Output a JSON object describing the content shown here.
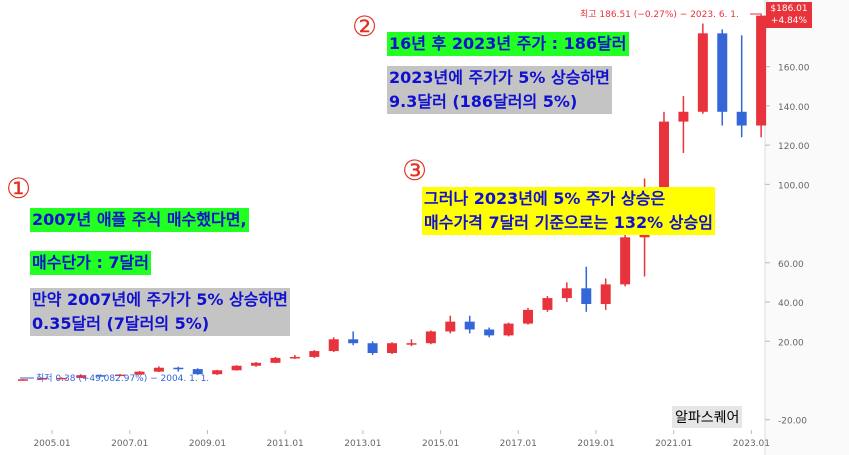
{
  "chart_data": {
    "type": "candlestick",
    "x": [
      "2004.01",
      "2004.07",
      "2005.01",
      "2005.07",
      "2006.01",
      "2006.07",
      "2007.01",
      "2007.07",
      "2008.01",
      "2008.07",
      "2009.01",
      "2009.07",
      "2010.01",
      "2010.07",
      "2011.01",
      "2011.07",
      "2012.01",
      "2012.07",
      "2013.01",
      "2013.07",
      "2014.01",
      "2014.07",
      "2015.01",
      "2015.07",
      "2016.01",
      "2016.07",
      "2017.01",
      "2017.07",
      "2018.01",
      "2018.07",
      "2019.01",
      "2019.07",
      "2020.01",
      "2020.07",
      "2021.01",
      "2021.07",
      "2022.01",
      "2022.07",
      "2023.01"
    ],
    "open": [
      0.4,
      0.6,
      1.3,
      1.3,
      2.7,
      2.4,
      3.0,
      4.5,
      6.5,
      5.8,
      3.2,
      5.2,
      7.5,
      9.0,
      11.5,
      12,
      15,
      21,
      19,
      14,
      19,
      19,
      25,
      30,
      26,
      23,
      29,
      36,
      42,
      47,
      39,
      49,
      73,
      91,
      132,
      137,
      177,
      137,
      130
    ],
    "high": [
      0.7,
      1.4,
      1.6,
      2.9,
      3.1,
      3.3,
      4.8,
      7.2,
      7.0,
      6.2,
      5.4,
      7.8,
      9.4,
      12.0,
      13.0,
      15.5,
      22,
      25,
      20,
      19.5,
      21,
      25.5,
      33,
      33,
      27,
      29.5,
      37,
      43,
      50,
      58,
      52,
      75,
      103,
      137,
      145,
      182,
      179,
      176,
      186.5
    ],
    "low": [
      0.38,
      0.55,
      1.1,
      1.2,
      2.1,
      2.2,
      2.9,
      4.3,
      4.5,
      2.9,
      2.8,
      5.0,
      7.0,
      8.8,
      11.0,
      11.5,
      14.5,
      18,
      13,
      13.5,
      17.5,
      18.5,
      24,
      24,
      22,
      22.5,
      28.5,
      35,
      40,
      35,
      36,
      48,
      53,
      89,
      116,
      136,
      130,
      124,
      124
    ],
    "close": [
      0.6,
      1.3,
      1.3,
      2.7,
      2.4,
      3.0,
      4.5,
      6.5,
      5.8,
      3.2,
      5.2,
      7.5,
      9.0,
      11.5,
      12,
      15,
      21,
      19,
      14,
      19,
      19,
      25,
      30,
      26,
      23,
      29,
      36,
      42,
      47,
      39,
      49,
      73,
      91,
      132,
      137,
      177,
      137,
      130,
      186
    ],
    "up_color": "#e8323c",
    "down_color": "#3566d8",
    "xlim": [
      2003.66,
      2023.35
    ],
    "xticks": [
      {
        "value": 2005,
        "label": "2005.01"
      },
      {
        "value": 2007,
        "label": "2007.01"
      },
      {
        "value": 2009,
        "label": "2009.01"
      },
      {
        "value": 2011,
        "label": "2011.01"
      },
      {
        "value": 2013,
        "label": "2013.01"
      },
      {
        "value": 2015,
        "label": "2015.01"
      },
      {
        "value": 2017,
        "label": "2017.01"
      },
      {
        "value": 2019,
        "label": "2019.01"
      },
      {
        "value": 2021,
        "label": "2021.01"
      },
      {
        "value": 2023,
        "label": "2023.01"
      }
    ],
    "ylim": [
      -38,
      194
    ],
    "yticks": [
      {
        "value": -20,
        "label": "-20.00"
      },
      {
        "value": 20,
        "label": "20.00"
      },
      {
        "value": 40,
        "label": "40.00"
      },
      {
        "value": 60,
        "label": "60.00"
      },
      {
        "value": 100,
        "label": "100.00"
      },
      {
        "value": 120,
        "label": "120.00"
      },
      {
        "value": 140,
        "label": "140.00"
      },
      {
        "value": 160,
        "label": "160.00"
      }
    ],
    "annotations": {
      "high_label": "최고 186.51 (−0.27%) − 2023. 6. 1.",
      "low_label": "최저 0.38 (+49,082.97%) − 2004. 1. 1.",
      "last_price": "$186.01",
      "last_change": "+4.84%",
      "watermark": "알파스퀘어"
    },
    "notes": [
      {
        "number": "①",
        "lines": [
          "2007년 애플 주식 매수했다면,",
          "매수단가 : 7달러",
          "만약 2007년에 주가가 5% 상승하면",
          "0.35달러 (7달러의 5%)"
        ]
      },
      {
        "number": "②",
        "lines": [
          "16년 후 2023년 주가 : 186달러",
          "2023년에 주가가 5% 상승하면",
          "9.3달러 (186달러의 5%)"
        ]
      },
      {
        "number": "③",
        "lines": [
          "그러나 2023년에 5% 주가 상승은",
          "매수가격 7달러 기준으로는 132% 상승임"
        ]
      }
    ]
  }
}
